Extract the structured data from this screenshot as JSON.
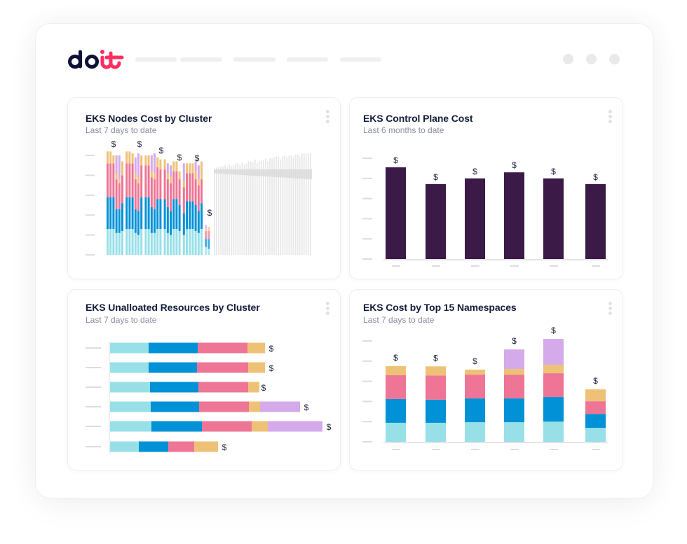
{
  "app": {
    "logo_text": "doit",
    "logo_colors": {
      "do": "#0f1136",
      "it": "#ff2e63"
    },
    "nav_placeholders": 5,
    "window_dots": 3
  },
  "colors": {
    "cyan": "#98e0e8",
    "blue": "#0091d6",
    "pink": "#ee7595",
    "orange": "#eec276",
    "purple": "#d5aaea",
    "dark_purple": "#3b1a48",
    "grey_bar": "#e8e8e8",
    "grey_band": "#d9d9d9",
    "axis_tick": "#dddddd"
  },
  "cards": [
    {
      "id": "nodes",
      "title": "EKS Nodes Cost by Cluster",
      "subtitle": "Last 7 days to date",
      "menu_icon": "kebab-icon"
    },
    {
      "id": "control-plane",
      "title": "EKS Control Plane Cost",
      "subtitle": "Last 6 months to date",
      "menu_icon": "kebab-icon"
    },
    {
      "id": "unalloc",
      "title": "EKS Unalloated Resources by Cluster",
      "subtitle": "Last 7 days to date",
      "menu_icon": "kebab-icon"
    },
    {
      "id": "namespaces",
      "title": "EKS Cost by Top 15 Namespaces",
      "subtitle": "Last 7 days to date",
      "menu_icon": "kebab-icon"
    }
  ],
  "chart_data": [
    {
      "type": "bar",
      "title": "EKS Nodes Cost by Cluster",
      "stacked": true,
      "ylim": [
        0,
        5
      ],
      "value_label": "$",
      "series_names": [
        "cyan",
        "blue",
        "pink",
        "orange",
        "purple"
      ],
      "groups": [
        {
          "label": "$",
          "bars": [
            [
              1.3,
              1.6,
              1.7,
              0.6,
              0
            ],
            [
              1.3,
              1.6,
              1.7,
              0.6,
              0
            ],
            [
              1.3,
              1.6,
              1.7,
              0.4,
              0
            ],
            [
              1.1,
              1.2,
              1.5,
              0.3,
              0.9
            ],
            [
              1.1,
              1.2,
              1.3,
              0.2,
              1.2
            ],
            [
              1.2,
              1.4,
              1.4,
              0.7,
              0
            ]
          ]
        },
        {
          "label": "$",
          "bars": [
            [
              1.3,
              1.6,
              1.7,
              0.6,
              0
            ],
            [
              1.3,
              1.6,
              1.7,
              0.6,
              0
            ],
            [
              1.3,
              1.6,
              1.7,
              0.5,
              0
            ],
            [
              1.1,
              1.2,
              1.5,
              0.3,
              0.8
            ],
            [
              1.0,
              1.2,
              1.4,
              0.3,
              1.2
            ],
            [
              1.3,
              1.6,
              1.6,
              0.5,
              0
            ]
          ]
        },
        {
          "label": "$",
          "bars": [
            [
              1.3,
              1.6,
              1.6,
              0.5,
              0
            ],
            [
              1.3,
              1.6,
              1.6,
              0.5,
              0
            ],
            [
              1.1,
              1.3,
              1.5,
              0.3,
              0.8
            ],
            [
              1.1,
              1.2,
              1.5,
              0.3,
              1.0
            ],
            [
              1.3,
              1.5,
              1.6,
              0.5,
              0
            ],
            [
              1.3,
              1.5,
              1.5,
              0.5,
              0
            ]
          ]
        },
        {
          "label": "$",
          "bars": [
            [
              1.3,
              1.5,
              1.5,
              0.5,
              0
            ],
            [
              1.1,
              1.3,
              1.4,
              0.3,
              0.5
            ],
            [
              1.0,
              1.2,
              1.4,
              0.3,
              0.6
            ],
            [
              1.3,
              1.5,
              1.4,
              0.5,
              0
            ],
            [
              1.3,
              1.5,
              1.4,
              0.5,
              0
            ],
            [
              1.2,
              1.3,
              1.3,
              0.4,
              0
            ]
          ]
        },
        {
          "label": "$",
          "bars": [
            [
              1.0,
              1.1,
              1.3,
              0.3,
              0.9
            ],
            [
              1.3,
              1.4,
              1.4,
              0.5,
              0
            ],
            [
              1.3,
              1.4,
              1.4,
              0.5,
              0
            ],
            [
              1.3,
              1.4,
              1.4,
              0.5,
              0
            ],
            [
              1.2,
              1.3,
              1.3,
              0.4,
              0.5
            ],
            [
              1.1,
              1.1,
              1.3,
              0.3,
              0.7
            ],
            [
              1.3,
              1.3,
              1.2,
              0.9,
              0
            ]
          ]
        },
        {
          "label": "$",
          "bars": [
            [
              0.4,
              0.4,
              0.4,
              0.1,
              0.2
            ],
            [
              0.3,
              0.5,
              0.4,
              0.2,
              0
            ]
          ]
        }
      ],
      "forecast": {
        "bars": [
          4.35,
          4.4,
          4.4,
          4.45,
          4.45,
          4.5,
          4.4,
          4.55,
          4.45,
          4.5,
          4.6,
          4.6,
          4.5,
          4.65,
          4.55,
          4.6,
          4.7,
          4.7,
          4.65,
          4.8,
          4.6,
          4.7,
          4.75,
          4.75,
          4.85,
          4.7,
          4.85,
          4.85,
          4.9,
          4.95,
          4.95,
          4.8,
          4.95,
          5.0,
          4.9,
          5.0,
          5.0,
          4.9,
          5.05,
          5.05,
          4.95,
          5.1,
          5.1,
          5.05,
          5.1,
          5.1
        ],
        "band_start": [
          4.1,
          4.3
        ],
        "band_end": [
          3.8,
          4.3
        ]
      }
    },
    {
      "type": "bar",
      "title": "EKS Control Plane Cost",
      "categories": [
        "",
        "",
        "",
        "",
        "",
        ""
      ],
      "values": [
        4.55,
        3.72,
        4.0,
        4.3,
        4.0,
        3.72
      ],
      "data_labels": [
        "$",
        "$",
        "$",
        "$",
        "$",
        "$"
      ],
      "ylim": [
        0,
        5
      ]
    },
    {
      "type": "bar",
      "orientation": "horizontal",
      "title": "EKS Unalloated Resources by Cluster",
      "stacked": true,
      "categories": [
        "",
        "",
        "",
        "",
        "",
        ""
      ],
      "series": [
        {
          "name": "cyan",
          "values": [
            5.5,
            5.5,
            5.7,
            5.8,
            5.9,
            4.1
          ]
        },
        {
          "name": "blue",
          "values": [
            7.0,
            6.9,
            6.9,
            6.9,
            7.2,
            4.2
          ]
        },
        {
          "name": "pink",
          "values": [
            7.1,
            7.3,
            7.1,
            7.1,
            7.1,
            3.7
          ]
        },
        {
          "name": "orange",
          "values": [
            2.5,
            2.4,
            1.6,
            1.6,
            2.3,
            3.4
          ]
        },
        {
          "name": "purple",
          "values": [
            0,
            0,
            0,
            5.7,
            7.8,
            0
          ]
        }
      ],
      "data_labels": [
        "$",
        "$",
        "$",
        "$",
        "$",
        "$"
      ],
      "xlim": [
        0,
        32
      ]
    },
    {
      "type": "bar",
      "title": "EKS Cost by Top 15 Namespaces",
      "stacked": true,
      "categories": [
        "",
        "",
        "",
        "",
        "",
        ""
      ],
      "series": [
        {
          "name": "cyan",
          "values": [
            0.94,
            0.94,
            0.97,
            0.97,
            1.0,
            0.69
          ]
        },
        {
          "name": "blue",
          "values": [
            1.18,
            1.15,
            1.18,
            1.18,
            1.22,
            0.69
          ]
        },
        {
          "name": "pink",
          "values": [
            1.18,
            1.2,
            1.18,
            1.18,
            1.18,
            0.63
          ]
        },
        {
          "name": "orange",
          "values": [
            0.45,
            0.45,
            0.25,
            0.28,
            0.42,
            0.59
          ]
        },
        {
          "name": "purple",
          "values": [
            0,
            0,
            0,
            0.97,
            1.28,
            0
          ]
        }
      ],
      "data_labels": [
        "$",
        "$",
        "$",
        "$",
        "$",
        "$"
      ],
      "ylim": [
        0,
        5
      ]
    }
  ]
}
